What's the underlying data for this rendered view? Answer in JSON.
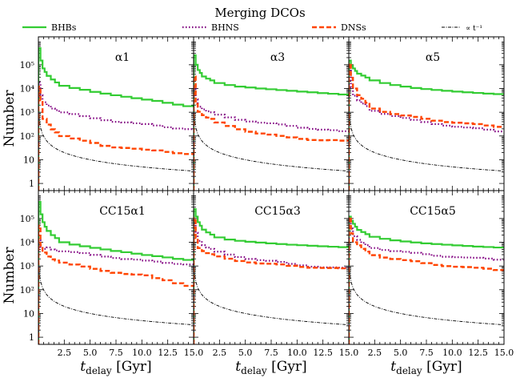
{
  "title": "Merging DCOs",
  "chart_data": {
    "type": "line",
    "title": "Merging DCOs",
    "xlabel": "t_delay [Gyr]",
    "xlabel_main": "t",
    "xlabel_sub": "delay",
    "xlabel_unit": " [Gyr]",
    "ylabel": "Number",
    "xlim": [
      0,
      15
    ],
    "ylim": [
      0.5,
      1500000
    ],
    "yscale": "log",
    "grid": false,
    "legend_placement": "top",
    "x_ticks": [
      2.5,
      5.0,
      7.5,
      10.0,
      12.5,
      15.0
    ],
    "x_tick_labels": [
      "2.5",
      "5.0",
      "7.5",
      "10.0",
      "12.5",
      "15.0"
    ],
    "y_ticks": [
      1,
      10,
      100,
      1000,
      10000,
      100000
    ],
    "y_tick_labels": [
      "1",
      "10",
      "10²",
      "10³",
      "10⁴",
      "10⁵"
    ],
    "legend": [
      {
        "label": "BHBs",
        "color": "#33cc33",
        "style": "solid"
      },
      {
        "label": "BHNS",
        "color": "#800080",
        "style": "dotted"
      },
      {
        "label": "DNSs",
        "color": "#ff4500",
        "style": "dashed"
      },
      {
        "label": "∝ t⁻¹",
        "color": "#000000",
        "style": "dashdot"
      }
    ],
    "reference_curve": {
      "label": "∝ t⁻¹",
      "at_t1_gyr": 50
    },
    "panels": [
      {
        "label": "α1",
        "series": [
          {
            "name": "BHBs",
            "t": [
              0.2,
              0.4,
              0.6,
              0.8,
              1.2,
              1.6,
              2,
              3,
              4,
              5,
              6,
              7,
              8,
              9,
              10,
              11,
              12,
              13,
              14,
              15
            ],
            "values": [
              500000,
              150000,
              70000,
              50000,
              34000,
              24000,
              18000,
              13000,
              10500,
              8800,
              7200,
              6100,
              5200,
              4500,
              3900,
              3400,
              3000,
              2500,
              2100,
              1800
            ]
          },
          {
            "name": "BHNS",
            "t": [
              0.2,
              0.4,
              0.8,
              1.2,
              1.6,
              2,
              3,
              4,
              5,
              6,
              7,
              8,
              9,
              10,
              11,
              12,
              13,
              14,
              15
            ],
            "values": [
              18000,
              5000,
              2500,
              1900,
              1500,
              1300,
              1000,
              800,
              650,
              550,
              480,
              420,
              380,
              330,
              300,
              270,
              240,
              220,
              200
            ]
          },
          {
            "name": "DNSs",
            "t": [
              0.2,
              0.4,
              0.8,
              1.2,
              1.6,
              2,
              3,
              4,
              5,
              6,
              7,
              8,
              9,
              10,
              11,
              12,
              13,
              14,
              15
            ],
            "values": [
              12000,
              3000,
              500,
              300,
              200,
              150,
              100,
              75,
              60,
              50,
              40,
              35,
              32,
              28,
              25,
              24,
              22,
              20,
              18
            ]
          }
        ]
      },
      {
        "label": "α3",
        "series": [
          {
            "name": "BHBs",
            "t": [
              0.2,
              0.4,
              0.6,
              0.8,
              1.2,
              1.6,
              2,
              3,
              4,
              5,
              6,
              7,
              8,
              9,
              10,
              11,
              12,
              13,
              14,
              15
            ],
            "values": [
              250000,
              100000,
              60000,
              45000,
              32000,
              26000,
              22000,
              17000,
              14000,
              12000,
              11000,
              10000,
              9300,
              8600,
              8000,
              7400,
              6900,
              6400,
              6000,
              5600
            ]
          },
          {
            "name": "BHNS",
            "t": [
              0.2,
              0.4,
              0.8,
              1.2,
              1.6,
              2,
              3,
              4,
              5,
              6,
              7,
              8,
              9,
              10,
              11,
              12,
              13,
              14,
              15
            ],
            "values": [
              12000,
              3500,
              1800,
              1400,
              1100,
              950,
              750,
              600,
              500,
              430,
              370,
              330,
              290,
              260,
              230,
              210,
              190,
              170,
              150
            ]
          },
          {
            "name": "DNSs",
            "t": [
              0.2,
              0.4,
              0.8,
              1.2,
              1.6,
              2,
              3,
              4,
              5,
              6,
              7,
              8,
              9,
              10,
              11,
              12,
              13,
              14,
              15
            ],
            "values": [
              30000,
              2200,
              1100,
              800,
              600,
              500,
              350,
              260,
              200,
              160,
              130,
              110,
              95,
              85,
              78,
              72,
              68,
              65,
              60
            ]
          }
        ]
      },
      {
        "label": "α5",
        "series": [
          {
            "name": "BHBs",
            "t": [
              0.2,
              0.4,
              0.6,
              0.8,
              1.2,
              1.6,
              2,
              3,
              4,
              5,
              6,
              7,
              8,
              9,
              10,
              11,
              12,
              13,
              14,
              15
            ],
            "values": [
              150000,
              90000,
              70000,
              55000,
              42000,
              35000,
              29000,
              22000,
              17000,
              14000,
              12000,
              10500,
              9500,
              8700,
              8000,
              7400,
              6900,
              6500,
              6100,
              5800
            ]
          },
          {
            "name": "BHNS",
            "t": [
              0.2,
              0.4,
              0.8,
              1.2,
              1.6,
              2,
              3,
              4,
              5,
              6,
              7,
              8,
              9,
              10,
              11,
              12,
              13,
              14,
              15
            ],
            "values": [
              60000,
              12000,
              5000,
              3000,
              2200,
              1800,
              1200,
              900,
              700,
              550,
              450,
              380,
              330,
              290,
              250,
              220,
              200,
              180,
              160
            ]
          },
          {
            "name": "DNSs",
            "t": [
              0.2,
              0.4,
              0.8,
              1.2,
              1.6,
              2,
              3,
              4,
              5,
              6,
              7,
              8,
              9,
              10,
              11,
              12,
              13,
              14,
              15
            ],
            "values": [
              120000,
              30000,
              10000,
              5000,
              3500,
              2500,
              1500,
              1100,
              850,
              700,
              600,
              520,
              460,
              410,
              370,
              330,
              300,
              270,
              250
            ]
          }
        ]
      },
      {
        "label": "CC15α1",
        "series": [
          {
            "name": "BHBs",
            "t": [
              0.2,
              0.4,
              0.6,
              0.8,
              1.2,
              1.6,
              2,
              3,
              4,
              5,
              6,
              7,
              8,
              9,
              10,
              11,
              12,
              13,
              14,
              15
            ],
            "values": [
              500000,
              150000,
              70000,
              45000,
              30000,
              20000,
              15000,
              10000,
              8000,
              6800,
              5800,
              5000,
              4300,
              3800,
              3300,
              2900,
              2600,
              2300,
              2000,
              1800
            ]
          },
          {
            "name": "BHNS",
            "t": [
              0.2,
              0.4,
              0.8,
              1.2,
              1.6,
              2,
              3,
              4,
              5,
              6,
              7,
              8,
              9,
              10,
              11,
              12,
              13,
              14,
              15
            ],
            "values": [
              12000,
              6000,
              5000,
              6000,
              5200,
              4800,
              4200,
              3700,
              3300,
              2900,
              2600,
              2300,
              2000,
              1800,
              1600,
              1500,
              1400,
              1300,
              1200
            ]
          },
          {
            "name": "DNSs",
            "t": [
              0.2,
              0.4,
              0.8,
              1.2,
              1.6,
              2,
              3,
              4,
              5,
              6,
              7,
              8,
              9,
              10,
              11,
              12,
              13,
              14,
              15
            ],
            "values": [
              50000,
              7000,
              3500,
              2500,
              2000,
              1800,
              1400,
              1100,
              900,
              750,
              650,
              550,
              470,
              420,
              380,
              300,
              260,
              200,
              150
            ]
          }
        ]
      },
      {
        "label": "CC15α3",
        "series": [
          {
            "name": "BHBs",
            "t": [
              0.2,
              0.4,
              0.6,
              0.8,
              1.2,
              1.6,
              2,
              3,
              4,
              5,
              6,
              7,
              8,
              9,
              10,
              11,
              12,
              13,
              14,
              15
            ],
            "values": [
              250000,
              120000,
              70000,
              50000,
              34000,
              26000,
              21000,
              16000,
              13000,
              11500,
              10500,
              9700,
              9000,
              8400,
              7900,
              7500,
              7100,
              6800,
              6500,
              6200
            ]
          },
          {
            "name": "BHNS",
            "t": [
              0.2,
              0.4,
              0.8,
              1.2,
              1.6,
              2,
              3,
              4,
              5,
              6,
              7,
              8,
              9,
              10,
              11,
              12,
              13,
              14,
              15
            ],
            "values": [
              60000,
              25000,
              12000,
              8000,
              6000,
              5000,
              3800,
              3000,
              2500,
              2100,
              1800,
              1600,
              1400,
              1200,
              1100,
              1000,
              900,
              850,
              800
            ]
          },
          {
            "name": "DNSs",
            "t": [
              0.2,
              0.4,
              0.8,
              1.2,
              1.6,
              2,
              3,
              4,
              5,
              6,
              7,
              8,
              9,
              10,
              11,
              12,
              13,
              14,
              15
            ],
            "values": [
              100000,
              15000,
              6000,
              4500,
              3500,
              3000,
              2400,
              2000,
              1700,
              1500,
              1300,
              1200,
              1100,
              1000,
              950,
              900,
              850,
              800,
              750
            ]
          }
        ]
      },
      {
        "label": "CC15α5",
        "series": [
          {
            "name": "BHBs",
            "t": [
              0.2,
              0.4,
              0.6,
              0.8,
              1.2,
              1.6,
              2,
              3,
              4,
              5,
              6,
              7,
              8,
              9,
              10,
              11,
              12,
              13,
              14,
              15
            ],
            "values": [
              120000,
              80000,
              60000,
              45000,
              33000,
              27000,
              22000,
              17000,
              14000,
              12000,
              10800,
              9800,
              9000,
              8400,
              7900,
              7400,
              7000,
              6600,
              6300,
              6000
            ]
          },
          {
            "name": "BHNS",
            "t": [
              0.2,
              0.4,
              0.8,
              1.2,
              1.6,
              2,
              3,
              4,
              5,
              6,
              7,
              8,
              9,
              10,
              11,
              12,
              13,
              14,
              15
            ],
            "values": [
              100000,
              40000,
              18000,
              12000,
              9000,
              7500,
              6000,
              5000,
              4300,
              3800,
              3400,
              3100,
              2800,
              2600,
              2400,
              2200,
              2100,
              2000,
              1900
            ]
          },
          {
            "name": "DNSs",
            "t": [
              0.2,
              0.4,
              0.8,
              1.2,
              1.6,
              2,
              3,
              4,
              5,
              6,
              7,
              8,
              9,
              10,
              11,
              12,
              13,
              14,
              15
            ],
            "values": [
              120000,
              25000,
              10000,
              7000,
              5000,
              4000,
              3000,
              2400,
              2000,
              1700,
              1500,
              1300,
              1150,
              1050,
              950,
              870,
              800,
              750,
              700
            ]
          }
        ]
      }
    ]
  }
}
